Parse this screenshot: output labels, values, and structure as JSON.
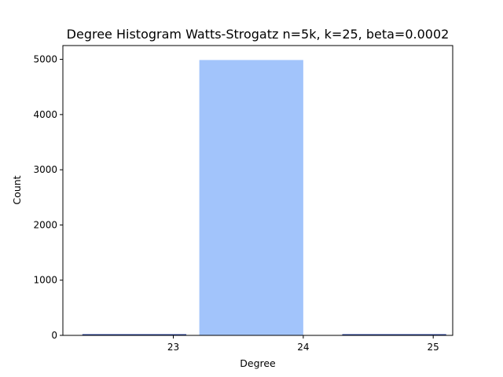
{
  "chart_data": {
    "type": "bar",
    "title": "Degree Histogram Watts-Strogatz n=5k, k=25, beta=0.0002",
    "xlabel": "Degree",
    "ylabel": "Count",
    "xlim": [
      22.15,
      25.15
    ],
    "ylim": [
      0,
      5250
    ],
    "x_ticks": [
      23,
      24,
      25
    ],
    "y_ticks": [
      0,
      1000,
      2000,
      3000,
      4000,
      5000
    ],
    "bar_color": "#a2c4fb",
    "edge_color": "#1f3a93",
    "bar_width": 0.8,
    "bars": [
      {
        "x": 22.7,
        "count": 3
      },
      {
        "x": 23.6,
        "count": 4988
      },
      {
        "x": 24.7,
        "count": 9
      }
    ],
    "grid": false,
    "legend": "none"
  }
}
